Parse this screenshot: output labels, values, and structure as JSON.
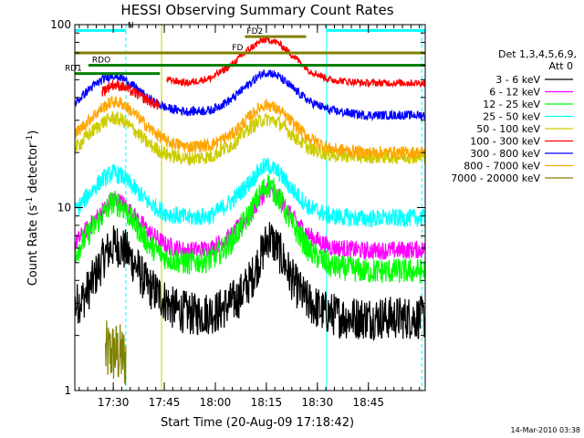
{
  "chart_data": {
    "type": "line",
    "title": "HESSI Observing Summary Count Rates",
    "xlabel": "Start Time (20-Aug-09 17:18:42)",
    "ylabel_main": "Count Rate (s",
    "ylabel_sup1": "-1",
    "ylabel_mid": " detector",
    "ylabel_sup2": "-1",
    "ylabel_end": ")",
    "yscale": "log",
    "ylim": [
      1,
      100
    ],
    "xlim_minutes": [
      0,
      103
    ],
    "x_ticks": [
      {
        "label": "17:30",
        "min": 11.3
      },
      {
        "label": "17:45",
        "min": 26.3
      },
      {
        "label": "18:00",
        "min": 41.3
      },
      {
        "label": "18:15",
        "min": 56.3
      },
      {
        "label": "18:30",
        "min": 71.3
      },
      {
        "label": "18:45",
        "min": 86.3
      }
    ],
    "y_ticks": [
      {
        "label": "1",
        "value": 1
      },
      {
        "label": "10",
        "value": 10
      },
      {
        "label": "100",
        "value": 100
      }
    ],
    "legend": {
      "header1": "Det 1,3,4,5,6,9,",
      "header2": "Att 0",
      "placement": "right",
      "entries": [
        {
          "label": "3 - 6 keV",
          "color": "#000000"
        },
        {
          "label": "6 - 12 keV",
          "color": "#ff00ff"
        },
        {
          "label": "12 - 25 keV",
          "color": "#00ff00"
        },
        {
          "label": "25 - 50 keV",
          "color": "#00ffff"
        },
        {
          "label": "50 - 100 keV",
          "color": "#cccc00"
        },
        {
          "label": "100 - 300 keV",
          "color": "#ff0000"
        },
        {
          "label": "300 - 800 keV",
          "color": "#0000ff"
        },
        {
          "label": "800 - 7000 keV",
          "color": "#ffa500"
        },
        {
          "label": "7000 - 20000 keV",
          "color": "#808000"
        }
      ]
    },
    "series": [
      {
        "name": "7000 - 20000 keV",
        "color": "#808000",
        "segments": [
          {
            "x0": 9.0,
            "x1": 15.0,
            "values": [
              [
                9.0,
                1.6
              ],
              [
                12.0,
                1.6
              ],
              [
                15.0,
                1.5
              ]
            ],
            "noise": 0.18
          }
        ]
      },
      {
        "name": "3 - 6 keV",
        "color": "#000000",
        "segments": [
          {
            "x0": 0.0,
            "x1": 103.0,
            "values": [
              [
                0,
                2.9
              ],
              [
                3,
                3.3
              ],
              [
                6,
                4.2
              ],
              [
                9,
                5.6
              ],
              [
                12,
                6.3
              ],
              [
                15,
                5.8
              ],
              [
                18,
                4.8
              ],
              [
                21,
                3.8
              ],
              [
                25,
                3.3
              ],
              [
                29,
                2.8
              ],
              [
                35,
                2.6
              ],
              [
                42,
                2.7
              ],
              [
                48,
                3.2
              ],
              [
                52,
                4.1
              ],
              [
                55,
                5.6
              ],
              [
                57,
                7.0
              ],
              [
                60,
                5.8
              ],
              [
                64,
                4.0
              ],
              [
                68,
                3.1
              ],
              [
                73,
                2.7
              ],
              [
                80,
                2.5
              ],
              [
                90,
                2.5
              ],
              [
                103,
                2.5
              ]
            ],
            "noise": 0.12
          }
        ]
      },
      {
        "name": "6 - 12 keV",
        "color": "#ff00ff",
        "segments": [
          {
            "x0": 0.0,
            "x1": 103.0,
            "values": [
              [
                0,
                6.3
              ],
              [
                4,
                7.8
              ],
              [
                8,
                9.5
              ],
              [
                11,
                11.2
              ],
              [
                14,
                10.6
              ],
              [
                18,
                8.8
              ],
              [
                22,
                7.3
              ],
              [
                27,
                6.2
              ],
              [
                33,
                5.8
              ],
              [
                40,
                6.0
              ],
              [
                46,
                7.0
              ],
              [
                51,
                9.0
              ],
              [
                55,
                11.5
              ],
              [
                57,
                12.8
              ],
              [
                60,
                11.3
              ],
              [
                64,
                8.8
              ],
              [
                69,
                7.0
              ],
              [
                75,
                6.1
              ],
              [
                85,
                5.8
              ],
              [
                103,
                5.9
              ]
            ],
            "noise": 0.05
          }
        ]
      },
      {
        "name": "12 - 25 keV",
        "color": "#00ff00",
        "segments": [
          {
            "x0": 0.0,
            "x1": 103.0,
            "values": [
              [
                0,
                5.6
              ],
              [
                4,
                7.2
              ],
              [
                8,
                9.0
              ],
              [
                11,
                10.8
              ],
              [
                14,
                10.2
              ],
              [
                18,
                8.0
              ],
              [
                22,
                6.2
              ],
              [
                27,
                5.3
              ],
              [
                33,
                5.0
              ],
              [
                40,
                5.2
              ],
              [
                46,
                6.5
              ],
              [
                51,
                9.0
              ],
              [
                55,
                12.3
              ],
              [
                57,
                13.5
              ],
              [
                60,
                11.3
              ],
              [
                64,
                8.0
              ],
              [
                69,
                5.8
              ],
              [
                75,
                4.8
              ],
              [
                85,
                4.5
              ],
              [
                103,
                4.5
              ]
            ],
            "noise": 0.07
          }
        ]
      },
      {
        "name": "25 - 50 keV",
        "color": "#00ffff",
        "segments": [
          {
            "x0": 0.0,
            "x1": 103.0,
            "values": [
              [
                0,
                9.5
              ],
              [
                4,
                11.8
              ],
              [
                8,
                14.2
              ],
              [
                11,
                15.5
              ],
              [
                14,
                14.8
              ],
              [
                18,
                12.5
              ],
              [
                22,
                10.5
              ],
              [
                27,
                9.3
              ],
              [
                33,
                8.8
              ],
              [
                40,
                9.0
              ],
              [
                46,
                10.8
              ],
              [
                51,
                13.5
              ],
              [
                55,
                16.5
              ],
              [
                57,
                17.0
              ],
              [
                60,
                15.5
              ],
              [
                64,
                12.5
              ],
              [
                69,
                10.0
              ],
              [
                75,
                9.0
              ],
              [
                85,
                8.7
              ],
              [
                103,
                8.8
              ]
            ],
            "noise": 0.05
          }
        ]
      },
      {
        "name": "50 - 100 keV",
        "color": "#cccc00",
        "segments": [
          {
            "x0": 0.0,
            "x1": 103.0,
            "values": [
              [
                0,
                21
              ],
              [
                4,
                25
              ],
              [
                8,
                29
              ],
              [
                11,
                31
              ],
              [
                14,
                30
              ],
              [
                18,
                26
              ],
              [
                22,
                22
              ],
              [
                27,
                19.5
              ],
              [
                33,
                18.5
              ],
              [
                40,
                19
              ],
              [
                46,
                22
              ],
              [
                51,
                27
              ],
              [
                55,
                30
              ],
              [
                57,
                30.5
              ],
              [
                60,
                29
              ],
              [
                64,
                25
              ],
              [
                69,
                21
              ],
              [
                75,
                19.5
              ],
              [
                85,
                19
              ],
              [
                103,
                19
              ]
            ],
            "noise": 0.04
          }
        ]
      },
      {
        "name": "800 - 7000 keV",
        "color": "#ffa500",
        "segments": [
          {
            "x0": 0.0,
            "x1": 103.0,
            "values": [
              [
                0,
                25
              ],
              [
                4,
                30
              ],
              [
                8,
                35
              ],
              [
                11,
                38
              ],
              [
                14,
                37
              ],
              [
                18,
                32
              ],
              [
                22,
                27
              ],
              [
                27,
                23
              ],
              [
                33,
                21.5
              ],
              [
                40,
                22
              ],
              [
                46,
                25
              ],
              [
                51,
                31
              ],
              [
                55,
                36
              ],
              [
                57,
                36.5
              ],
              [
                60,
                34
              ],
              [
                64,
                29
              ],
              [
                69,
                24
              ],
              [
                75,
                21
              ],
              [
                85,
                20
              ],
              [
                103,
                20
              ]
            ],
            "noise": 0.035
          }
        ]
      },
      {
        "name": "300 - 800 keV",
        "color": "#0000ff",
        "segments": [
          {
            "x0": 0.0,
            "x1": 103.0,
            "values": [
              [
                0,
                37
              ],
              [
                4,
                44
              ],
              [
                8,
                50
              ],
              [
                11,
                53
              ],
              [
                14,
                51
              ],
              [
                18,
                45
              ],
              [
                22,
                39
              ],
              [
                27,
                35
              ],
              [
                33,
                33.5
              ],
              [
                40,
                34
              ],
              [
                46,
                39
              ],
              [
                51,
                47
              ],
              [
                55,
                54
              ],
              [
                57,
                55
              ],
              [
                60,
                52
              ],
              [
                64,
                45
              ],
              [
                69,
                38
              ],
              [
                75,
                34
              ],
              [
                85,
                32
              ],
              [
                103,
                32
              ]
            ],
            "noise": 0.025
          }
        ]
      },
      {
        "name": "100 - 300 keV",
        "color": "#ff0000",
        "segments": [
          {
            "x0": 8.0,
            "x1": 25.0,
            "values": [
              [
                8,
                43
              ],
              [
                11,
                47
              ],
              [
                14,
                46
              ],
              [
                18,
                42
              ],
              [
                22,
                38
              ],
              [
                25,
                36
              ]
            ],
            "noise": 0.03
          },
          {
            "x0": 27.0,
            "x1": 103.0,
            "values": [
              [
                27,
                50
              ],
              [
                33,
                48
              ],
              [
                40,
                51
              ],
              [
                46,
                60
              ],
              [
                51,
                73
              ],
              [
                55,
                82
              ],
              [
                57,
                83
              ],
              [
                60,
                79
              ],
              [
                64,
                68
              ],
              [
                69,
                56
              ],
              [
                75,
                50
              ],
              [
                85,
                48
              ],
              [
                103,
                48
              ]
            ],
            "noise": 0.02
          }
        ]
      }
    ],
    "annotations": {
      "N": {
        "label": "N",
        "color": "#00ffff",
        "x0": 0.0,
        "x1": 15.0,
        "y": 93
      },
      "N2": {
        "label": "",
        "color": "#00ffff",
        "x0": 74.0,
        "x1": 103.0,
        "y": 93
      },
      "FD": {
        "label": "FD",
        "color": "#808000",
        "x0": 0.0,
        "x1": 103.0,
        "y": 70
      },
      "FD2": {
        "label": "FD2",
        "color": "#808000",
        "x0": 50.0,
        "x1": 68.0,
        "y": 86
      },
      "RDO": {
        "label": "RDO",
        "color": "#008000",
        "x0": 4.0,
        "x1": 103.0,
        "y": 60
      },
      "RD1": {
        "label": "RD1",
        "color": "#008000",
        "x0": 0.0,
        "x1": 25.0,
        "y": 54
      },
      "RD1b": {
        "label": "",
        "color": "#008000",
        "x0": 27.0,
        "x1": 103.0,
        "y": 60
      }
    },
    "vlines": [
      {
        "x": 0.0,
        "color": "#00ffff",
        "style": "solid"
      },
      {
        "x": 15.0,
        "color": "#00ffff",
        "style": "dashed"
      },
      {
        "x": 74.0,
        "color": "#00ffff",
        "style": "solid"
      },
      {
        "x": 102.0,
        "color": "#00ffff",
        "style": "dashed"
      },
      {
        "x": 25.5,
        "color": "#cccc00",
        "style": "solid"
      }
    ]
  },
  "footer_date": "14-Mar-2010 03:38"
}
